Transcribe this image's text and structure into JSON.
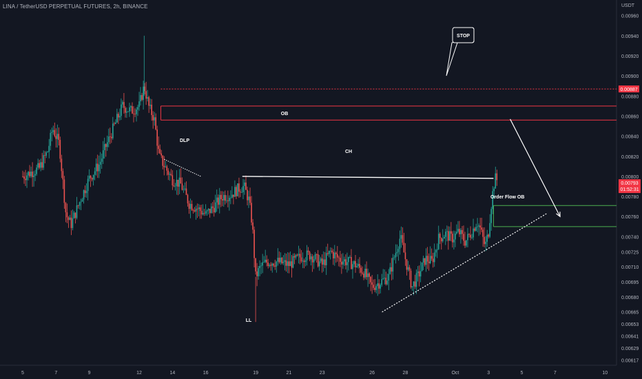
{
  "header": {
    "title": "LINA / TetherUSD PERPETUAL FUTURES, 2h, BINANCE"
  },
  "price_axis": {
    "unit": "USDT",
    "ticks": [
      "0.00960",
      "0.00940",
      "0.00920",
      "0.00900",
      "0.00880",
      "0.00860",
      "0.00840",
      "0.00820",
      "0.00800",
      "0.00780",
      "0.00760",
      "0.00740",
      "0.00725",
      "0.00710",
      "0.00695",
      "0.00680",
      "0.00665",
      "0.00653",
      "0.00641",
      "0.00629",
      "0.00617"
    ],
    "stop_badge": "0.00887",
    "price_badge": "0.00793",
    "countdown_badge": "01:52:31"
  },
  "time_axis": {
    "ticks": [
      "5",
      "7",
      "9",
      "12",
      "14",
      "16",
      "19",
      "21",
      "23",
      "26",
      "28",
      "Oct",
      "3",
      "5",
      "7",
      "10"
    ]
  },
  "annotations": {
    "stop": "STOP",
    "ob": "OB",
    "dlp": "DLP",
    "ch": "CH",
    "ll": "LL",
    "order_flow_ob": "Order Flow OB"
  },
  "colors": {
    "background": "#131722",
    "up": "#26a69a",
    "down": "#ef5350",
    "ob_line": "#f23645",
    "order_flow_line": "#4caf50",
    "annotation": "#ffffff",
    "price_badge": "#f23645",
    "stop_badge": "#f23645"
  },
  "chart_data": {
    "type": "candlestick",
    "title": "LINA / TetherUSD PERPETUAL FUTURES, 2h, BINANCE",
    "ylim": [
      0.00612,
      0.00968
    ],
    "price_path": [
      [
        5,
        0.008
      ],
      [
        6,
        0.00808
      ],
      [
        6.5,
        0.00825
      ],
      [
        6.8,
        0.00848
      ],
      [
        7.2,
        0.00832
      ],
      [
        7.6,
        0.00762
      ],
      [
        7.9,
        0.00752
      ],
      [
        8.5,
        0.00778
      ],
      [
        9,
        0.00798
      ],
      [
        9.6,
        0.00812
      ],
      [
        10,
        0.0083
      ],
      [
        10.5,
        0.0085
      ],
      [
        11,
        0.0087
      ],
      [
        11.5,
        0.00865
      ],
      [
        12,
        0.0087
      ],
      [
        12.3,
        0.0089
      ],
      [
        12.6,
        0.00868
      ],
      [
        12.9,
        0.00858
      ],
      [
        13.2,
        0.0082
      ],
      [
        13.6,
        0.00808
      ],
      [
        14,
        0.00797
      ],
      [
        14.5,
        0.00792
      ],
      [
        15,
        0.00773
      ],
      [
        15.5,
        0.00768
      ],
      [
        16,
        0.00762
      ],
      [
        16.5,
        0.0077
      ],
      [
        17,
        0.0078
      ],
      [
        17.5,
        0.00782
      ],
      [
        18,
        0.00788
      ],
      [
        18.3,
        0.0079
      ],
      [
        18.6,
        0.00776
      ],
      [
        18.8,
        0.00752
      ],
      [
        19,
        0.007
      ],
      [
        19.3,
        0.0071
      ],
      [
        19.7,
        0.00715
      ],
      [
        20.3,
        0.00715
      ],
      [
        21,
        0.00712
      ],
      [
        21.7,
        0.0072
      ],
      [
        22.3,
        0.00722
      ],
      [
        23,
        0.00712
      ],
      [
        23.5,
        0.00725
      ],
      [
        24,
        0.00718
      ],
      [
        24.5,
        0.00715
      ],
      [
        25,
        0.00712
      ],
      [
        25.5,
        0.00705
      ],
      [
        26,
        0.0069
      ],
      [
        26.5,
        0.00695
      ],
      [
        27,
        0.007
      ],
      [
        27.3,
        0.00718
      ],
      [
        27.7,
        0.0074
      ],
      [
        28,
        0.00718
      ],
      [
        28.4,
        0.0069
      ],
      [
        28.8,
        0.00702
      ],
      [
        29.2,
        0.00718
      ],
      [
        29.6,
        0.00715
      ],
      [
        30,
        0.00738
      ],
      [
        30.4,
        0.00743
      ],
      [
        30.8,
        0.00738
      ],
      [
        31.2,
        0.00745
      ],
      [
        31.6,
        0.00735
      ],
      [
        32,
        0.00745
      ],
      [
        32.3,
        0.00755
      ],
      [
        32.5,
        0.00748
      ],
      [
        32.8,
        0.0073
      ],
      [
        33,
        0.00745
      ],
      [
        33.15,
        0.0077
      ],
      [
        33.3,
        0.0079
      ],
      [
        33.45,
        0.008
      ],
      [
        33.55,
        0.00793
      ]
    ],
    "levels": [
      {
        "label": "STOP",
        "price": 0.00887,
        "style": "dotted"
      },
      {
        "label": "OB",
        "top": 0.0087,
        "bottom": 0.00856
      },
      {
        "label": "Order Flow OB",
        "top": 0.00771,
        "bottom": 0.0075
      },
      {
        "label": "CH",
        "price_start": 0.008,
        "price_end": 0.00798,
        "x_start": 18.2,
        "x_end": 33.3
      }
    ],
    "trendline_support": [
      [
        26.6,
        0.00665
      ],
      [
        36.5,
        0.00763
      ]
    ],
    "forecast_arrow": [
      [
        34.3,
        0.00857
      ],
      [
        37.3,
        0.0076
      ]
    ],
    "timeframe": "2h"
  }
}
